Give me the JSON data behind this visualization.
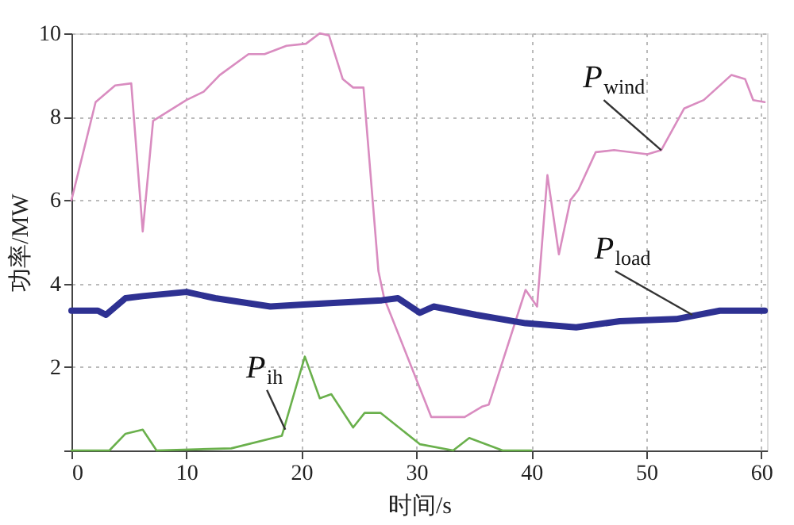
{
  "chart_data": {
    "type": "line",
    "xlabel": "时间/s",
    "ylabel": "功率/MW",
    "xlim": [
      0,
      60.5
    ],
    "ylim": [
      0,
      10
    ],
    "xticks": [
      0,
      10,
      20,
      30,
      40,
      50,
      60
    ],
    "yticks": [
      {
        "value": 0,
        "label": null
      },
      2,
      4,
      6,
      8,
      10
    ],
    "grid": true,
    "line_style": "solid",
    "marker": "none",
    "series": [
      {
        "name": "P$_{wind}$",
        "color": "#d98cc0",
        "x": [
          0,
          2.1,
          3.8,
          5.2,
          6.2,
          7.1,
          10,
          11.5,
          12.9,
          15.4,
          16.8,
          18.7,
          20.4,
          21.6,
          22.4,
          23.6,
          24.5,
          25.4,
          26.7,
          27.2,
          31.3,
          34.2,
          35.7,
          36.3,
          39.5,
          40.5,
          41.4,
          42.4,
          43.4,
          44.1,
          45.6,
          47.2,
          50.1,
          51.3,
          53.3,
          55,
          57.4,
          58.6,
          59.3,
          60.3
        ],
        "values": [
          6.0,
          8.35,
          8.75,
          8.8,
          5.25,
          7.9,
          8.4,
          8.6,
          9.0,
          9.5,
          9.5,
          9.7,
          9.75,
          10.0,
          9.95,
          8.9,
          8.7,
          8.7,
          4.3,
          3.65,
          0.8,
          0.8,
          1.05,
          1.1,
          3.85,
          3.45,
          6.6,
          4.7,
          6.0,
          6.25,
          7.15,
          7.2,
          7.1,
          7.2,
          8.2,
          8.4,
          9.0,
          8.9,
          8.4,
          8.35
        ]
      },
      {
        "name": "P$_{load}$",
        "color": "#2e3192",
        "x": [
          0,
          2.3,
          3.0,
          4.7,
          6.2,
          10,
          12.5,
          17.3,
          20.2,
          27,
          28.4,
          30.3,
          31.5,
          35.2,
          39.5,
          43.9,
          47.7,
          52.6,
          56.4,
          60.3
        ],
        "values": [
          3.35,
          3.35,
          3.25,
          3.65,
          3.7,
          3.8,
          3.65,
          3.45,
          3.5,
          3.6,
          3.65,
          3.3,
          3.45,
          3.25,
          3.05,
          2.95,
          3.1,
          3.15,
          3.35,
          3.35
        ]
      },
      {
        "name": "P$_{ih}$",
        "color": "#6ab04c",
        "x": [
          0,
          3.3,
          4.7,
          6.2,
          7.4,
          13.9,
          18.3,
          20.3,
          21.6,
          22.6,
          24.5,
          25.5,
          26.9,
          30.3,
          33.2,
          34.6,
          37.5,
          40
        ],
        "values": [
          0,
          0,
          0.4,
          0.5,
          0,
          0.05,
          0.35,
          2.25,
          1.25,
          1.35,
          0.55,
          0.9,
          0.9,
          0.15,
          0,
          0.3,
          0,
          0
        ]
      }
    ]
  }
}
